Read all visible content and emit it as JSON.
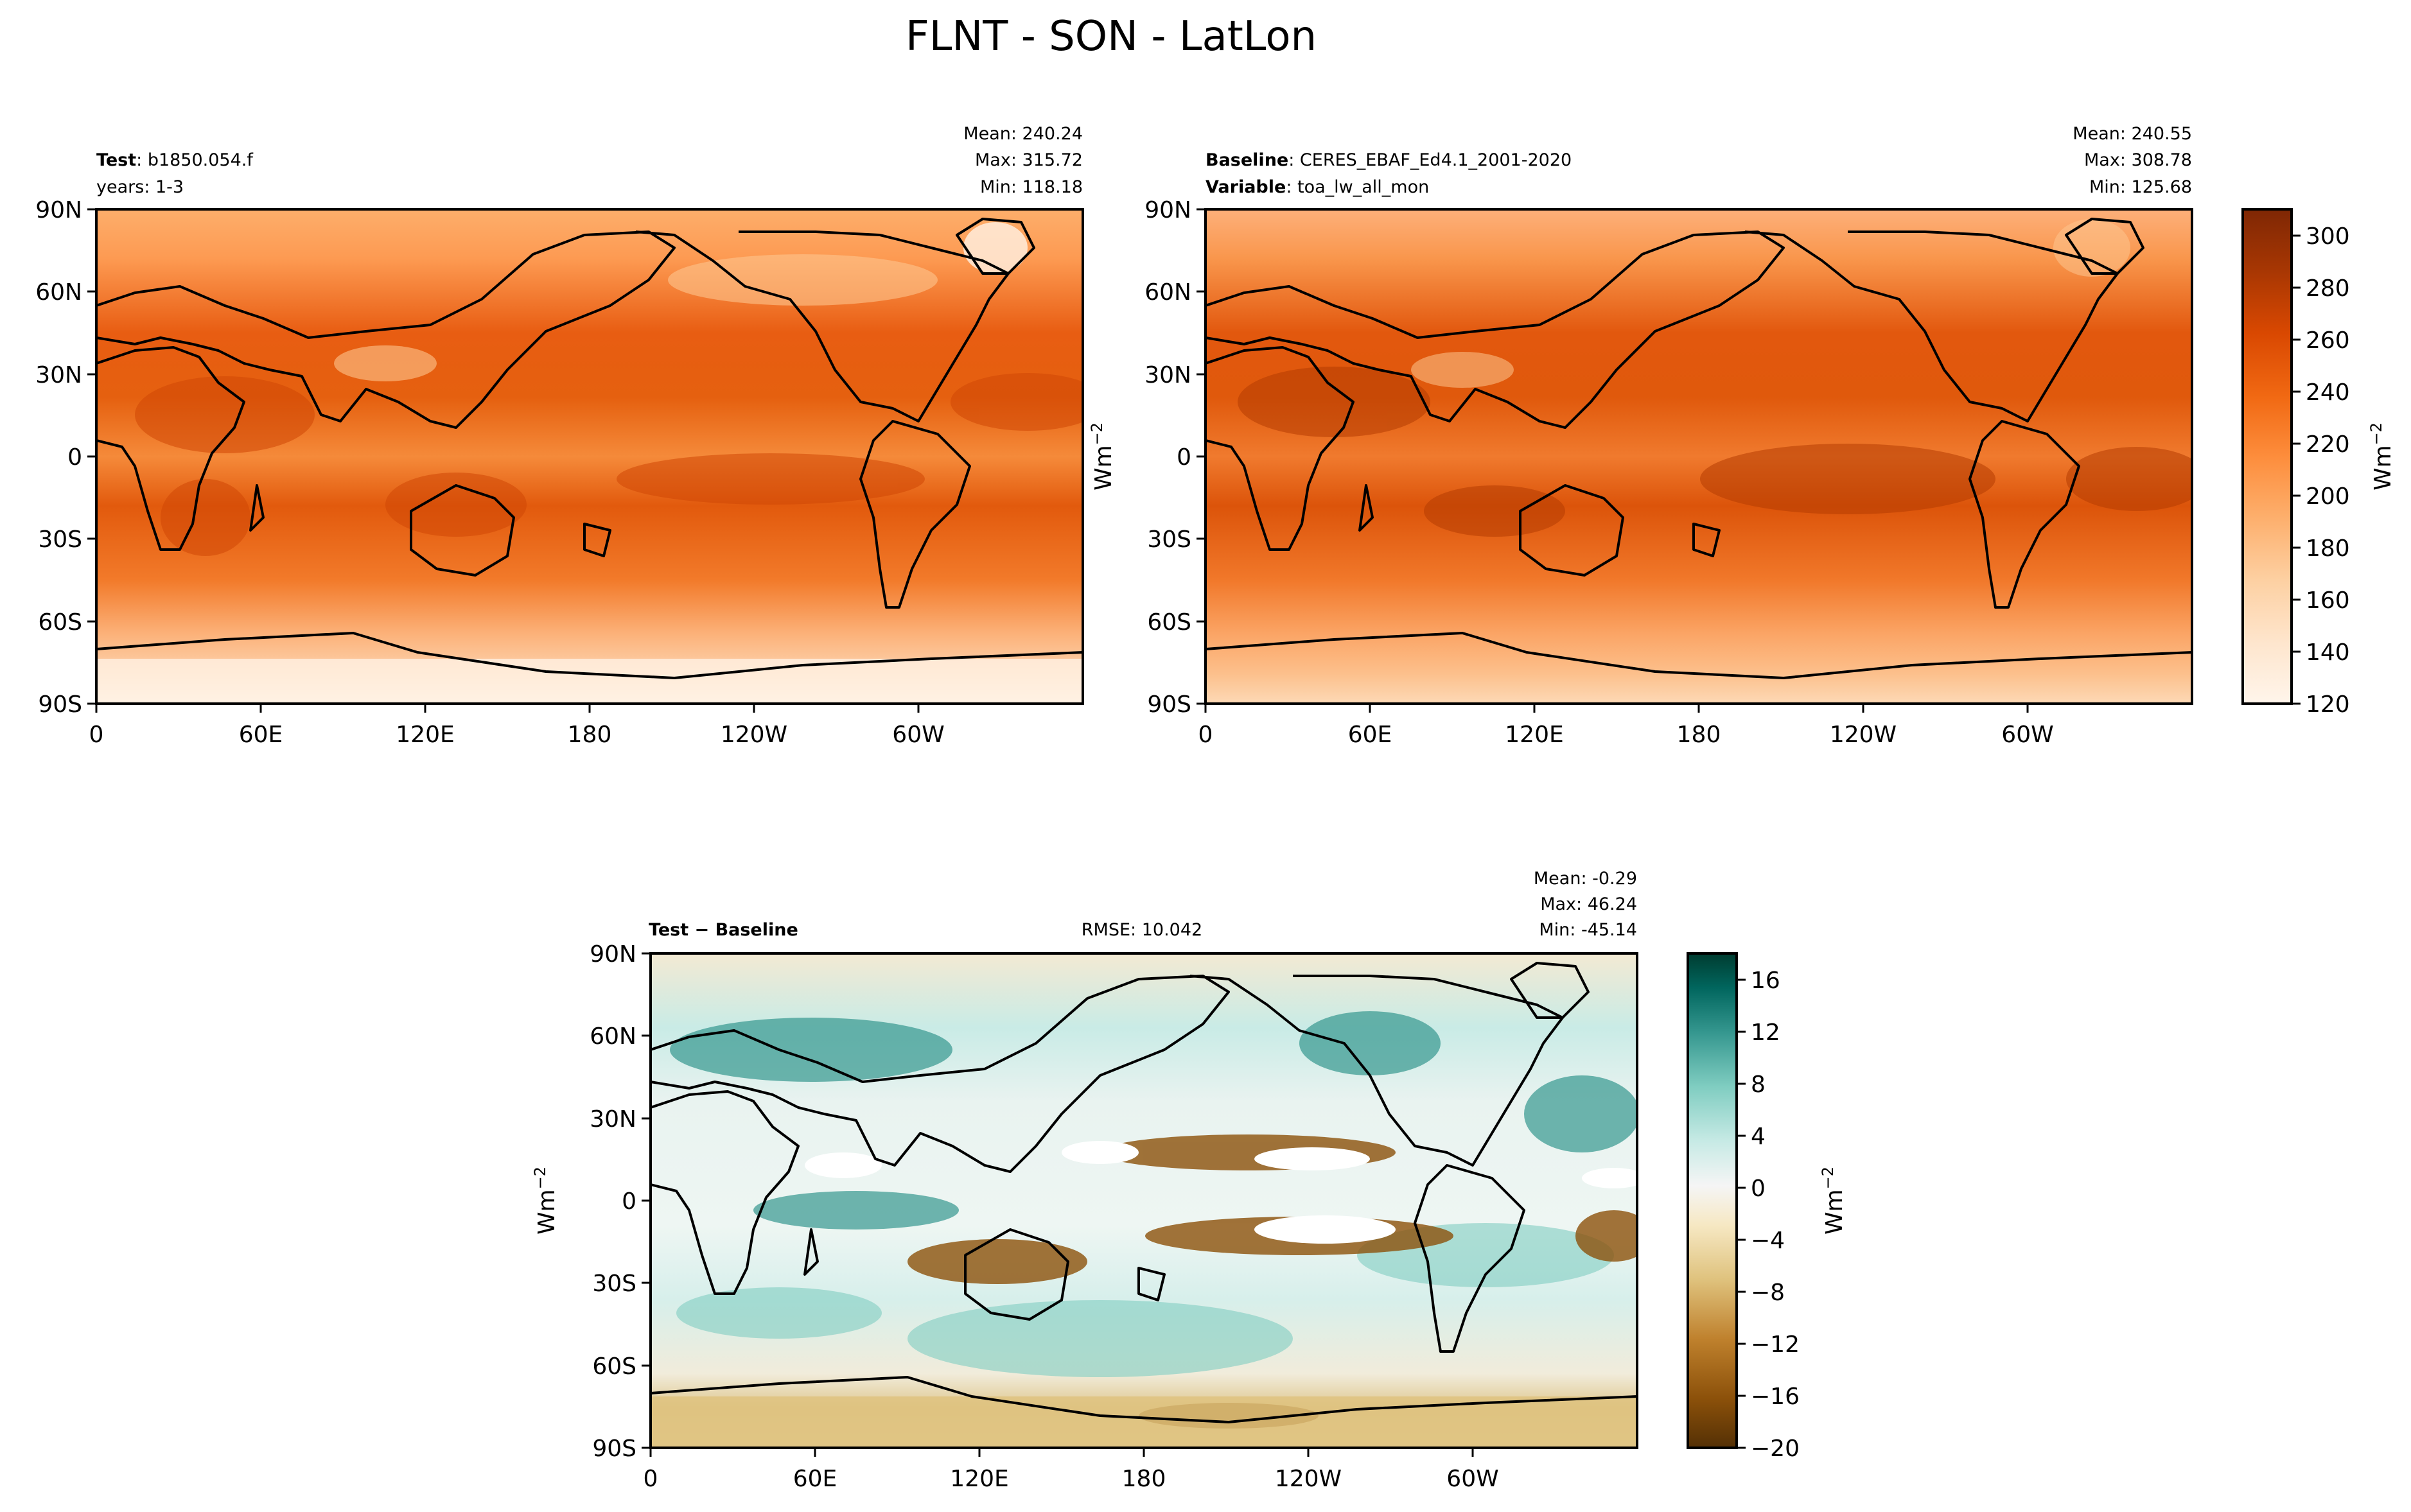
{
  "figure": {
    "title": "FLNT - SON - LatLon"
  },
  "chart_data": [
    {
      "type": "heatmap",
      "name": "test",
      "label_bold": "Test",
      "label_value": "b1850.054.f",
      "label_line2": "years: 1-3",
      "stats": [
        "Mean: 240.24",
        "Max: 315.72",
        "Min: 118.18"
      ],
      "x_ticks": [
        "0",
        "60E",
        "120E",
        "180",
        "120W",
        "60W"
      ],
      "y_ticks": [
        "90N",
        "60N",
        "30N",
        "0",
        "30S",
        "60S",
        "90S"
      ],
      "xlim": [
        0,
        360
      ],
      "ylim": [
        -90,
        90
      ],
      "colormap": "Oranges"
    },
    {
      "type": "heatmap",
      "name": "baseline",
      "label_bold": "Baseline",
      "label_value": "CERES_EBAF_Ed4.1_2001-2020",
      "label2_bold": "Variable",
      "label2_value": "toa_lw_all_mon",
      "stats": [
        "Mean: 240.55",
        "Max: 308.78",
        "Min: 125.68"
      ],
      "x_ticks": [
        "0",
        "60E",
        "120E",
        "180",
        "120W",
        "60W"
      ],
      "y_ticks": [
        "90N",
        "60N",
        "30N",
        "0",
        "30S",
        "60S",
        "90S"
      ],
      "ylabel": "Wm",
      "ylabel_sup": "−2",
      "xlim": [
        0,
        360
      ],
      "ylim": [
        -90,
        90
      ],
      "colormap": "Oranges",
      "colorbar": {
        "ticks": [
          "120",
          "140",
          "160",
          "180",
          "200",
          "220",
          "240",
          "260",
          "280",
          "300"
        ],
        "range": [
          120,
          310
        ],
        "label": "Wm",
        "label_sup": "−2"
      }
    },
    {
      "type": "heatmap",
      "name": "difference",
      "label_a": "Test",
      "label_op": "−",
      "label_b": "Baseline",
      "rmse": "RMSE: 10.042",
      "stats": [
        "Mean: -0.29",
        "Max: 46.24",
        "Min: -45.14"
      ],
      "x_ticks": [
        "0",
        "60E",
        "120E",
        "180",
        "120W",
        "60W"
      ],
      "y_ticks": [
        "90N",
        "60N",
        "30N",
        "0",
        "30S",
        "60S",
        "90S"
      ],
      "ylabel": "Wm",
      "ylabel_sup": "−2",
      "xlim": [
        0,
        360
      ],
      "ylim": [
        -90,
        90
      ],
      "colormap": "BrBG",
      "colorbar": {
        "ticks": [
          "−20",
          "−16",
          "−12",
          "−8",
          "−4",
          "0",
          "4",
          "8",
          "12",
          "16"
        ],
        "range": [
          -20,
          18
        ],
        "label": "Wm",
        "label_sup": "−2"
      }
    }
  ],
  "colors": {
    "oranges": [
      "#fff5eb",
      "#fee6ce",
      "#fdd0a2",
      "#fdae6b",
      "#fd8d3c",
      "#f16913",
      "#d94801",
      "#a63603",
      "#7f2704"
    ],
    "brbg": [
      "#543005",
      "#8c510a",
      "#bf812d",
      "#dfc27d",
      "#f6e8c3",
      "#f5f5f5",
      "#c7eae5",
      "#80cdc1",
      "#35978f",
      "#01665e",
      "#003c30"
    ]
  }
}
